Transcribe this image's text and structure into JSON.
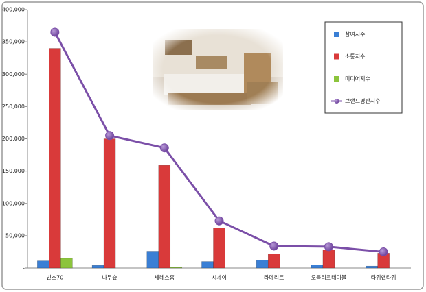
{
  "chart_data": {
    "type": "bar-line",
    "categories": [
      "빈스70",
      "나무숲",
      "세레스홈",
      "시세이",
      "라메리트",
      "오블리크테이블",
      "타임앤타임"
    ],
    "series": [
      {
        "name": "참여지수",
        "color": "#3a7fd5",
        "type": "bar",
        "values": [
          11000,
          4000,
          26000,
          10000,
          12000,
          5000,
          3000
        ]
      },
      {
        "name": "소통지수",
        "color": "#d93a3a",
        "type": "bar",
        "values": [
          340000,
          200000,
          159000,
          62000,
          22000,
          28000,
          23000
        ]
      },
      {
        "name": "미디어지수",
        "color": "#8cc43c",
        "type": "bar",
        "values": [
          15000,
          0,
          1000,
          0,
          0,
          0,
          0
        ]
      },
      {
        "name": "브랜드평판지수",
        "color": "#7b4fa8",
        "type": "line",
        "values": [
          365000,
          205000,
          186000,
          73000,
          34000,
          33000,
          25000
        ]
      }
    ],
    "ylim": [
      0,
      400000
    ],
    "yticks": [
      {
        "value": 0,
        "label": "-"
      },
      {
        "value": 50000,
        "label": "50,000"
      },
      {
        "value": 100000,
        "label": "100,000"
      },
      {
        "value": 150000,
        "label": "150,000"
      },
      {
        "value": 200000,
        "label": "200,000"
      },
      {
        "value": 250000,
        "label": "250,000"
      },
      {
        "value": 300000,
        "label": "300,000"
      },
      {
        "value": 350000,
        "label": "350,000"
      },
      {
        "value": 400000,
        "label": "400,000"
      }
    ],
    "grid": false,
    "legend": "top-right"
  }
}
